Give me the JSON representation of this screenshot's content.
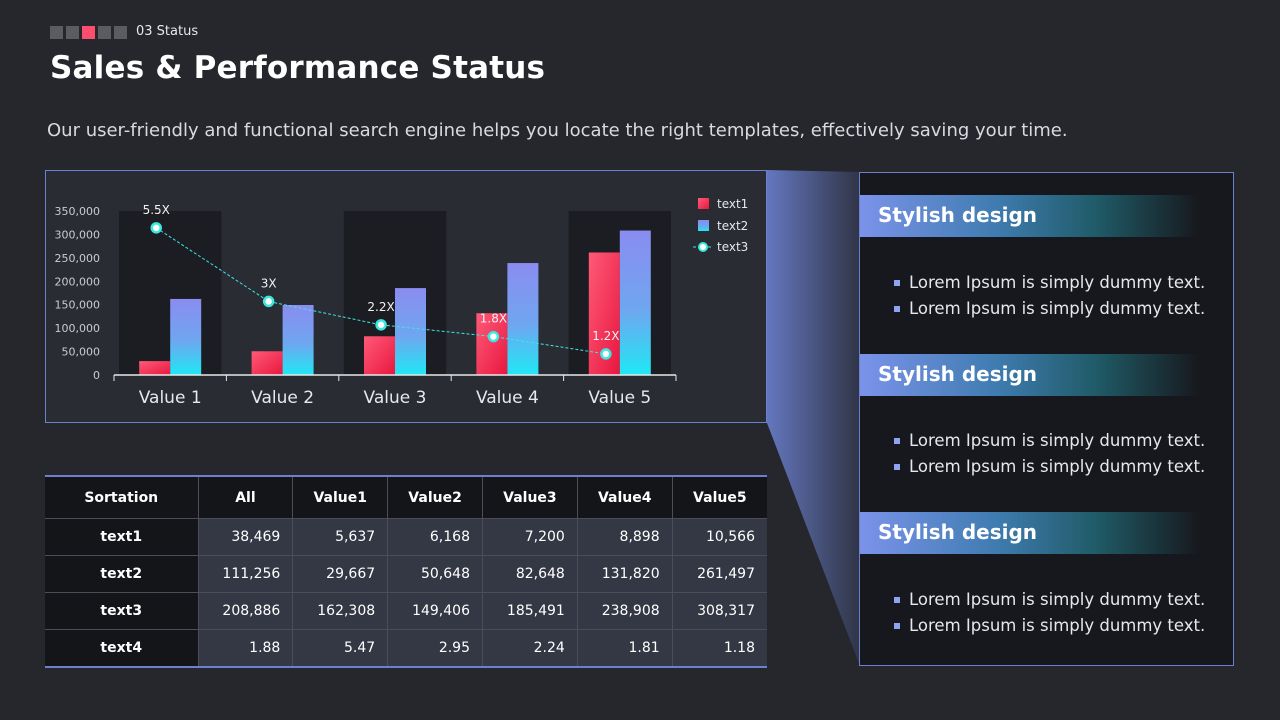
{
  "header": {
    "section_label": "03 Status",
    "steps": [
      false,
      false,
      true,
      false,
      false
    ],
    "title": "Sales & Performance Status",
    "subtitle": "Our user-friendly and functional search engine helps you locate the right templates, effectively  saving your time."
  },
  "colors": {
    "text1": "#ff4d6d",
    "text2": "#7b8ff0",
    "text3": "#3ee6e0",
    "accent": "#6b80cf"
  },
  "chart_data": {
    "type": "bar",
    "categories": [
      "Value 1",
      "Value 2",
      "Value 3",
      "Value 4",
      "Value 5"
    ],
    "series": [
      {
        "name": "text1",
        "type": "bar",
        "values": [
          29667,
          50648,
          82648,
          131820,
          261497
        ]
      },
      {
        "name": "text2",
        "type": "bar",
        "values": [
          162308,
          149406,
          185491,
          238908,
          308317
        ]
      },
      {
        "name": "text3",
        "type": "line",
        "values": [
          314000,
          157000,
          107000,
          82000,
          45000
        ],
        "labels": [
          "5.5X",
          "3X",
          "2.2X",
          "1.8X",
          "1.2X"
        ]
      }
    ],
    "ylim": [
      0,
      350000
    ],
    "yticks": [
      "0",
      "50,000",
      "100,000",
      "150,000",
      "200,000",
      "250,000",
      "300,000",
      "350,000"
    ],
    "legend": "top-right",
    "grid": false
  },
  "cards": [
    {
      "title": "Stylish design",
      "bullets": [
        "Lorem Ipsum is simply dummy text.",
        "Lorem Ipsum is simply dummy text."
      ]
    },
    {
      "title": "Stylish design",
      "bullets": [
        "Lorem Ipsum is simply dummy text.",
        "Lorem Ipsum is simply dummy text."
      ]
    },
    {
      "title": "Stylish design",
      "bullets": [
        "Lorem Ipsum is simply dummy text.",
        "Lorem Ipsum is simply dummy text."
      ]
    }
  ],
  "table": {
    "headers": [
      "Sortation",
      "All",
      "Value1",
      "Value2",
      "Value3",
      "Value4",
      "Value5"
    ],
    "rows": [
      [
        "text1",
        "38,469",
        "5,637",
        "6,168",
        "7,200",
        "8,898",
        "10,566"
      ],
      [
        "text2",
        "111,256",
        "29,667",
        "50,648",
        "82,648",
        "131,820",
        "261,497"
      ],
      [
        "text3",
        "208,886",
        "162,308",
        "149,406",
        "185,491",
        "238,908",
        "308,317"
      ],
      [
        "text4",
        "1.88",
        "5.47",
        "2.95",
        "2.24",
        "1.81",
        "1.18"
      ]
    ]
  }
}
